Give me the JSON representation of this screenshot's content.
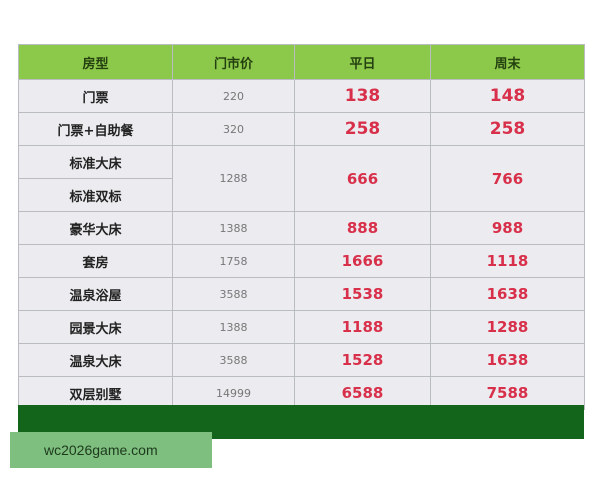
{
  "header": [
    "房型",
    "门市价",
    "平日",
    "周末"
  ],
  "rows": [
    {
      "name": "门票",
      "list": "220",
      "weekday": "138",
      "weekend": "148"
    },
    {
      "name": "门票+自助餐",
      "list": "320",
      "weekday": "258",
      "weekend": "258"
    },
    {
      "name": "标准大床",
      "list": "1288",
      "weekday": "666",
      "weekend": "766"
    },
    {
      "name": "标准双标"
    },
    {
      "name": "豪华大床",
      "list": "1388",
      "weekday": "888",
      "weekend": "988"
    },
    {
      "name": "套房",
      "list": "1758",
      "weekday": "1666",
      "weekend": "1118"
    },
    {
      "name": "温泉浴屋",
      "list": "3588",
      "weekday": "1538",
      "weekend": "1638"
    },
    {
      "name": "园景大床",
      "list": "1388",
      "weekday": "1188",
      "weekend": "1288"
    },
    {
      "name": "温泉大床",
      "list": "3588",
      "weekday": "1528",
      "weekend": "1638"
    },
    {
      "name": "双层别墅",
      "list": "14999",
      "weekday": "6588",
      "weekend": "7588"
    }
  ],
  "watermark": "wc2026game.com"
}
